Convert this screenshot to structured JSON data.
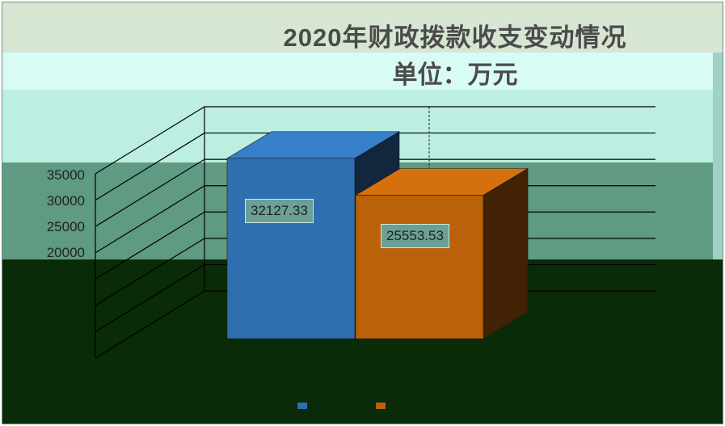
{
  "chart_data": {
    "type": "bar",
    "title": "2020年财政拨款收支变动情况",
    "subtitle": "单位：万元",
    "categories": [
      ""
    ],
    "series": [
      {
        "values": [
          32127.33
        ],
        "color": "#2f6fb0"
      },
      {
        "values": [
          25553.53
        ],
        "color": "#b9620a"
      }
    ],
    "y_tick_labels": [
      "35000",
      "30000",
      "25000",
      "20000"
    ],
    "data_labels": [
      "32127.33",
      "25553.53"
    ],
    "ylim": [
      0,
      35000
    ],
    "three_d": true,
    "grid": true,
    "legend_position": "bottom"
  }
}
